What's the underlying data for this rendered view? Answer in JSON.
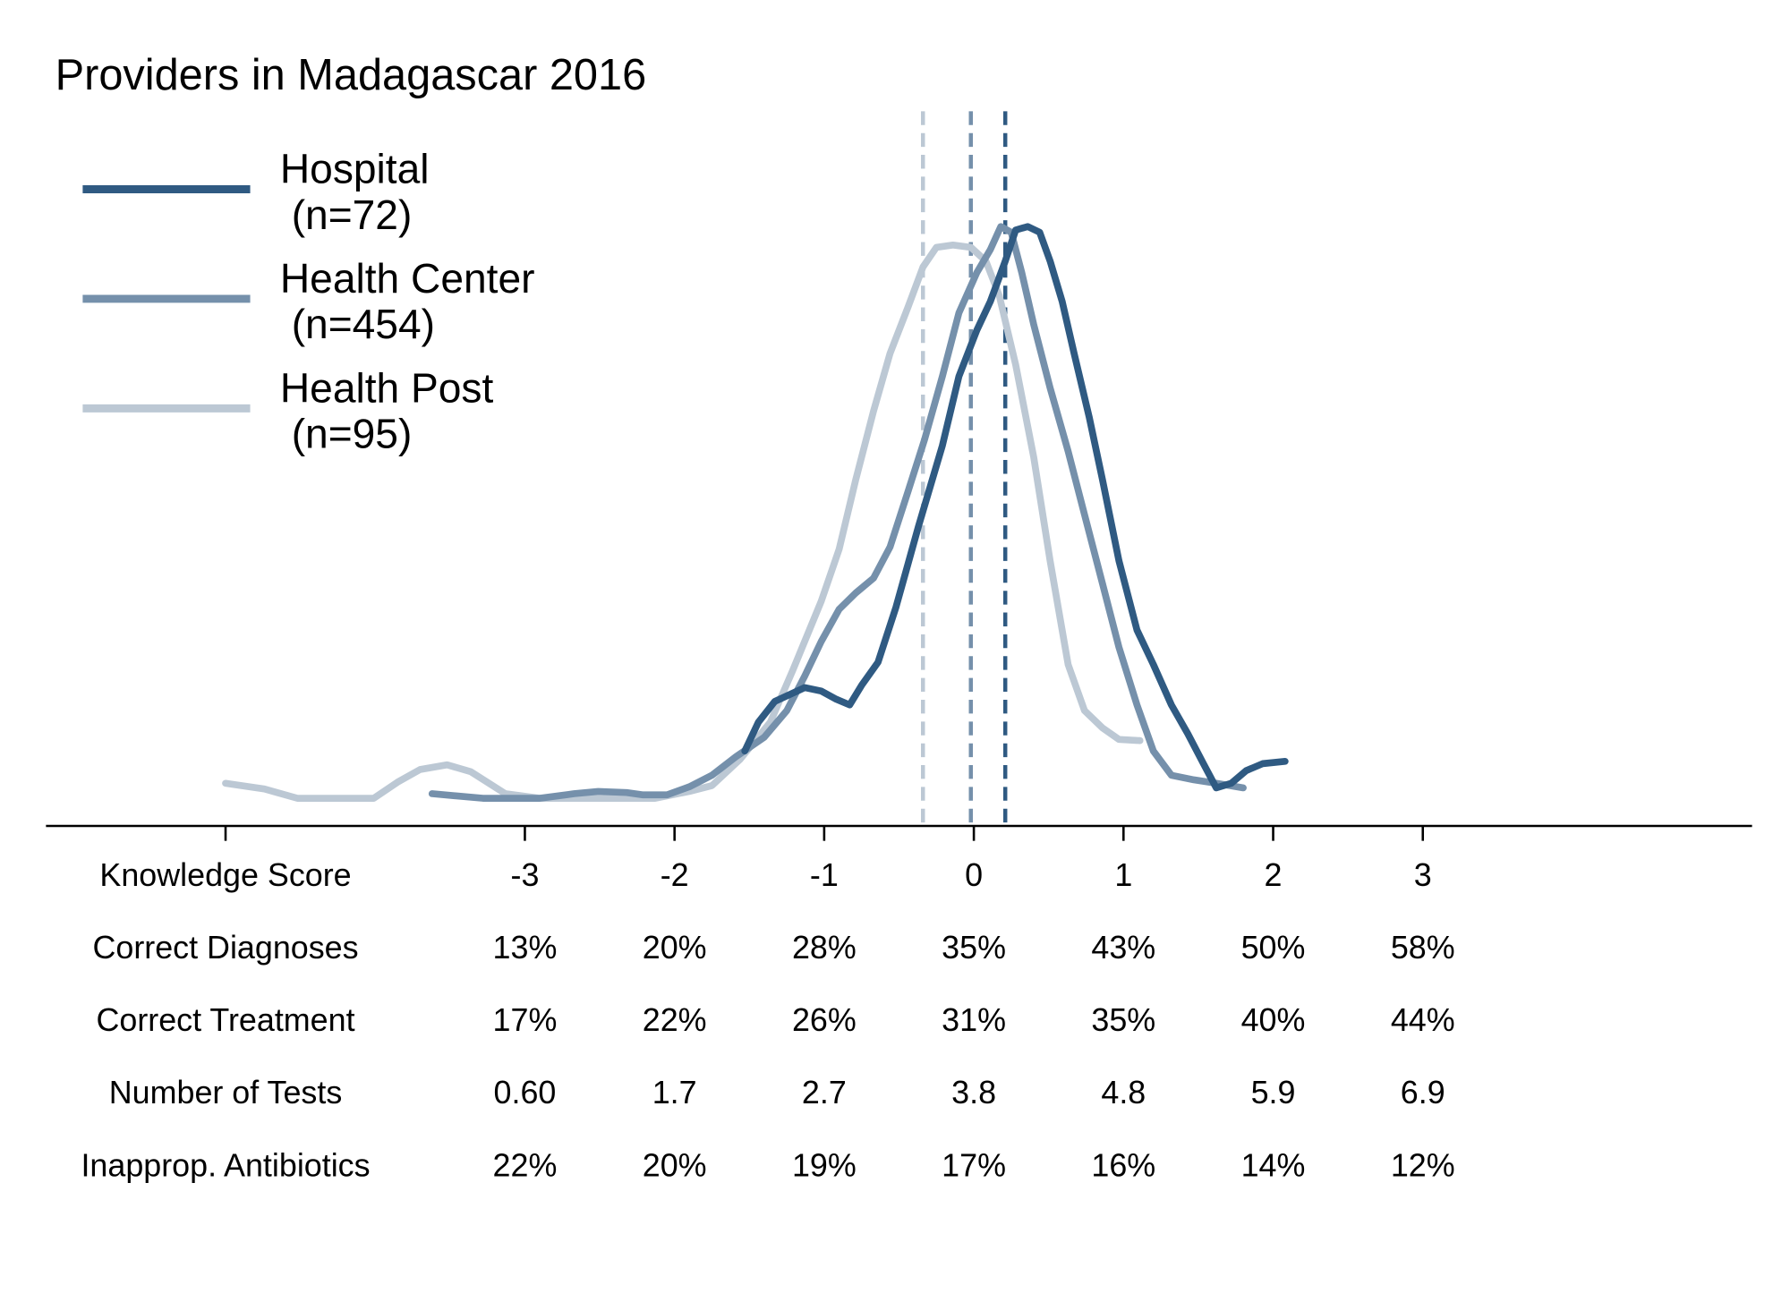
{
  "chart_data": {
    "type": "line",
    "title": "Providers in Madagascar 2016",
    "legend": "top-left",
    "xlim": [
      -6.2,
      5.2
    ],
    "ylim": [
      0,
      0.62
    ],
    "xticks": [
      {
        "value": -5,
        "label": "Knowledge Score"
      },
      -3,
      -2,
      -1,
      0,
      1,
      2,
      3
    ],
    "series": [
      {
        "name": "Hospital",
        "n_label": "(n=72)",
        "color": "#2f5a82",
        "mean": 0.21,
        "x": [
          -1.53,
          -1.44,
          -1.33,
          -1.13,
          -1.02,
          -0.92,
          -0.83,
          -0.75,
          -0.64,
          -0.52,
          -0.37,
          -0.21,
          -0.1,
          0.02,
          0.11,
          0.21,
          0.28,
          0.36,
          0.44,
          0.51,
          0.59,
          0.67,
          0.77,
          0.86,
          0.97,
          1.09,
          1.2,
          1.32,
          1.43,
          1.53,
          1.62,
          1.72,
          1.82,
          1.93,
          2.08
        ],
        "values": [
          0.065,
          0.09,
          0.108,
          0.12,
          0.117,
          0.11,
          0.105,
          0.122,
          0.142,
          0.19,
          0.26,
          0.33,
          0.39,
          0.43,
          0.455,
          0.49,
          0.517,
          0.52,
          0.515,
          0.49,
          0.455,
          0.41,
          0.355,
          0.3,
          0.23,
          0.17,
          0.14,
          0.105,
          0.08,
          0.055,
          0.033,
          0.037,
          0.048,
          0.054,
          0.056
        ]
      },
      {
        "name": "Health Center",
        "n_label": "(n=454)",
        "color": "#7590ab",
        "mean": -0.02,
        "x": [
          -3.62,
          -3.28,
          -2.9,
          -2.67,
          -2.51,
          -2.32,
          -2.21,
          -2.05,
          -1.9,
          -1.75,
          -1.59,
          -1.4,
          -1.25,
          -1.13,
          -1.02,
          -0.9,
          -0.79,
          -0.67,
          -0.56,
          -0.44,
          -0.33,
          -0.21,
          -0.1,
          0.02,
          0.11,
          0.18,
          0.25,
          0.32,
          0.4,
          0.51,
          0.63,
          0.74,
          0.86,
          0.97,
          1.09,
          1.2,
          1.32,
          1.47,
          1.62,
          1.8
        ],
        "values": [
          0.028,
          0.024,
          0.024,
          0.028,
          0.03,
          0.029,
          0.027,
          0.027,
          0.034,
          0.044,
          0.06,
          0.077,
          0.1,
          0.13,
          0.16,
          0.188,
          0.202,
          0.215,
          0.242,
          0.29,
          0.335,
          0.39,
          0.445,
          0.48,
          0.5,
          0.52,
          0.515,
          0.48,
          0.435,
          0.38,
          0.325,
          0.27,
          0.21,
          0.155,
          0.105,
          0.065,
          0.044,
          0.04,
          0.037,
          0.033
        ]
      },
      {
        "name": "Health Post",
        "n_label": "(n=95)",
        "color": "#bcc8d4",
        "mean": -0.34,
        "x": [
          -5.0,
          -4.74,
          -4.52,
          -4.01,
          -3.85,
          -3.7,
          -3.52,
          -3.36,
          -3.13,
          -2.9,
          -2.13,
          -1.9,
          -1.75,
          -1.56,
          -1.36,
          -1.21,
          -1.02,
          -0.9,
          -0.79,
          -0.67,
          -0.56,
          -0.44,
          -0.34,
          -0.25,
          -0.14,
          -0.02,
          0.08,
          0.17,
          0.28,
          0.4,
          0.51,
          0.63,
          0.74,
          0.86,
          0.97,
          1.11
        ],
        "values": [
          0.037,
          0.032,
          0.024,
          0.024,
          0.038,
          0.049,
          0.053,
          0.047,
          0.028,
          0.024,
          0.024,
          0.03,
          0.035,
          0.058,
          0.09,
          0.135,
          0.195,
          0.24,
          0.3,
          0.36,
          0.41,
          0.45,
          0.485,
          0.502,
          0.504,
          0.502,
          0.49,
          0.46,
          0.4,
          0.32,
          0.23,
          0.14,
          0.1,
          0.085,
          0.075,
          0.074
        ]
      }
    ],
    "table": [
      {
        "label": "Correct Diagnoses",
        "cells": [
          "13%",
          "20%",
          "28%",
          "35%",
          "43%",
          "50%",
          "58%"
        ]
      },
      {
        "label": "Correct Treatment",
        "cells": [
          "17%",
          "22%",
          "26%",
          "31%",
          "35%",
          "40%",
          "44%"
        ]
      },
      {
        "label": "Number of Tests",
        "cells": [
          "0.60",
          "1.7",
          "2.7",
          "3.8",
          "4.8",
          "5.9",
          "6.9"
        ]
      },
      {
        "label": "Inapprop. Antibiotics",
        "cells": [
          "22%",
          "20%",
          "19%",
          "17%",
          "16%",
          "14%",
          "12%"
        ]
      }
    ]
  }
}
